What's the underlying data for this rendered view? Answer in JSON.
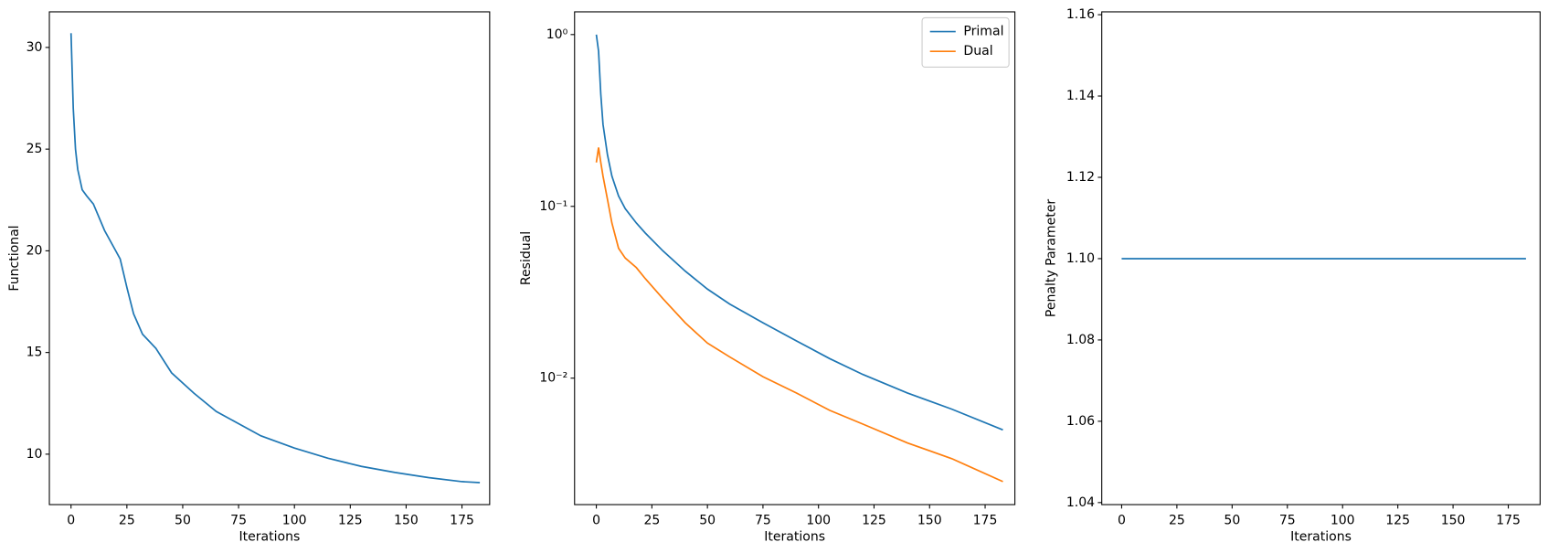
{
  "chart_data": [
    {
      "type": "line",
      "xlabel": "Iterations",
      "ylabel": "Functional",
      "x": [
        0,
        1,
        2,
        3,
        5,
        7,
        10,
        15,
        20,
        22,
        25,
        28,
        32,
        38,
        45,
        55,
        65,
        75,
        85,
        100,
        115,
        130,
        145,
        160,
        175,
        183
      ],
      "values": [
        30.7,
        27,
        25,
        24,
        23,
        22.7,
        22.3,
        21,
        20,
        19.6,
        18.2,
        16.9,
        15.9,
        15.2,
        14.0,
        13.0,
        12.1,
        11.5,
        10.9,
        10.3,
        9.8,
        9.4,
        9.1,
        8.85,
        8.65,
        8.6
      ],
      "color": "#1f77b4",
      "xlim": [
        -9.7,
        187.4
      ],
      "xticks": [
        0,
        25,
        50,
        75,
        100,
        125,
        150,
        175
      ],
      "ylim": [
        7.52,
        31.75
      ],
      "yticks": [
        10,
        15,
        20,
        25,
        30
      ]
    },
    {
      "type": "line",
      "xlabel": "Iterations",
      "ylabel": "Residual",
      "log_y": true,
      "legend": "upper right",
      "x": [
        0,
        1,
        2,
        3,
        5,
        7,
        10,
        13,
        18,
        22,
        30,
        40,
        50,
        60,
        75,
        90,
        105,
        120,
        140,
        160,
        183
      ],
      "series": [
        {
          "name": "Primal",
          "color": "#1f77b4",
          "values": [
            1.0,
            0.8,
            0.45,
            0.3,
            0.2,
            0.15,
            0.115,
            0.097,
            0.08,
            0.07,
            0.055,
            0.042,
            0.033,
            0.027,
            0.021,
            0.0165,
            0.013,
            0.0105,
            0.0082,
            0.0066,
            0.005
          ]
        },
        {
          "name": "Dual",
          "color": "#ff7f0e",
          "values": [
            0.18,
            0.22,
            0.18,
            0.15,
            0.11,
            0.08,
            0.057,
            0.05,
            0.044,
            0.038,
            0.029,
            0.021,
            0.016,
            0.0133,
            0.0102,
            0.0082,
            0.0065,
            0.0054,
            0.0042,
            0.0034,
            0.0025
          ]
        }
      ],
      "xlim": [
        -9.8,
        188.4
      ],
      "xticks": [
        0,
        25,
        50,
        75,
        100,
        125,
        150,
        175
      ],
      "ylim": [
        0.001836,
        1.356
      ],
      "yticks": [
        {
          "value": 1,
          "label": "10⁰"
        },
        {
          "value": 0.1,
          "label": "10⁻¹"
        },
        {
          "value": 0.01,
          "label": "10⁻²"
        }
      ]
    },
    {
      "type": "line",
      "xlabel": "Iterations",
      "ylabel": "Penalty Parameter",
      "x": [
        0,
        183
      ],
      "values": [
        1.1,
        1.1
      ],
      "color": "#1f77b4",
      "xlim": [
        -9.0,
        189.4
      ],
      "xticks": [
        0,
        25,
        50,
        75,
        100,
        125,
        150,
        175
      ],
      "ylim": [
        1.0395,
        1.1607
      ],
      "yticks": [
        1.04,
        1.06,
        1.08,
        {
          "value": 1.1,
          "label": "1.10"
        },
        1.12,
        1.14,
        1.16
      ]
    }
  ]
}
